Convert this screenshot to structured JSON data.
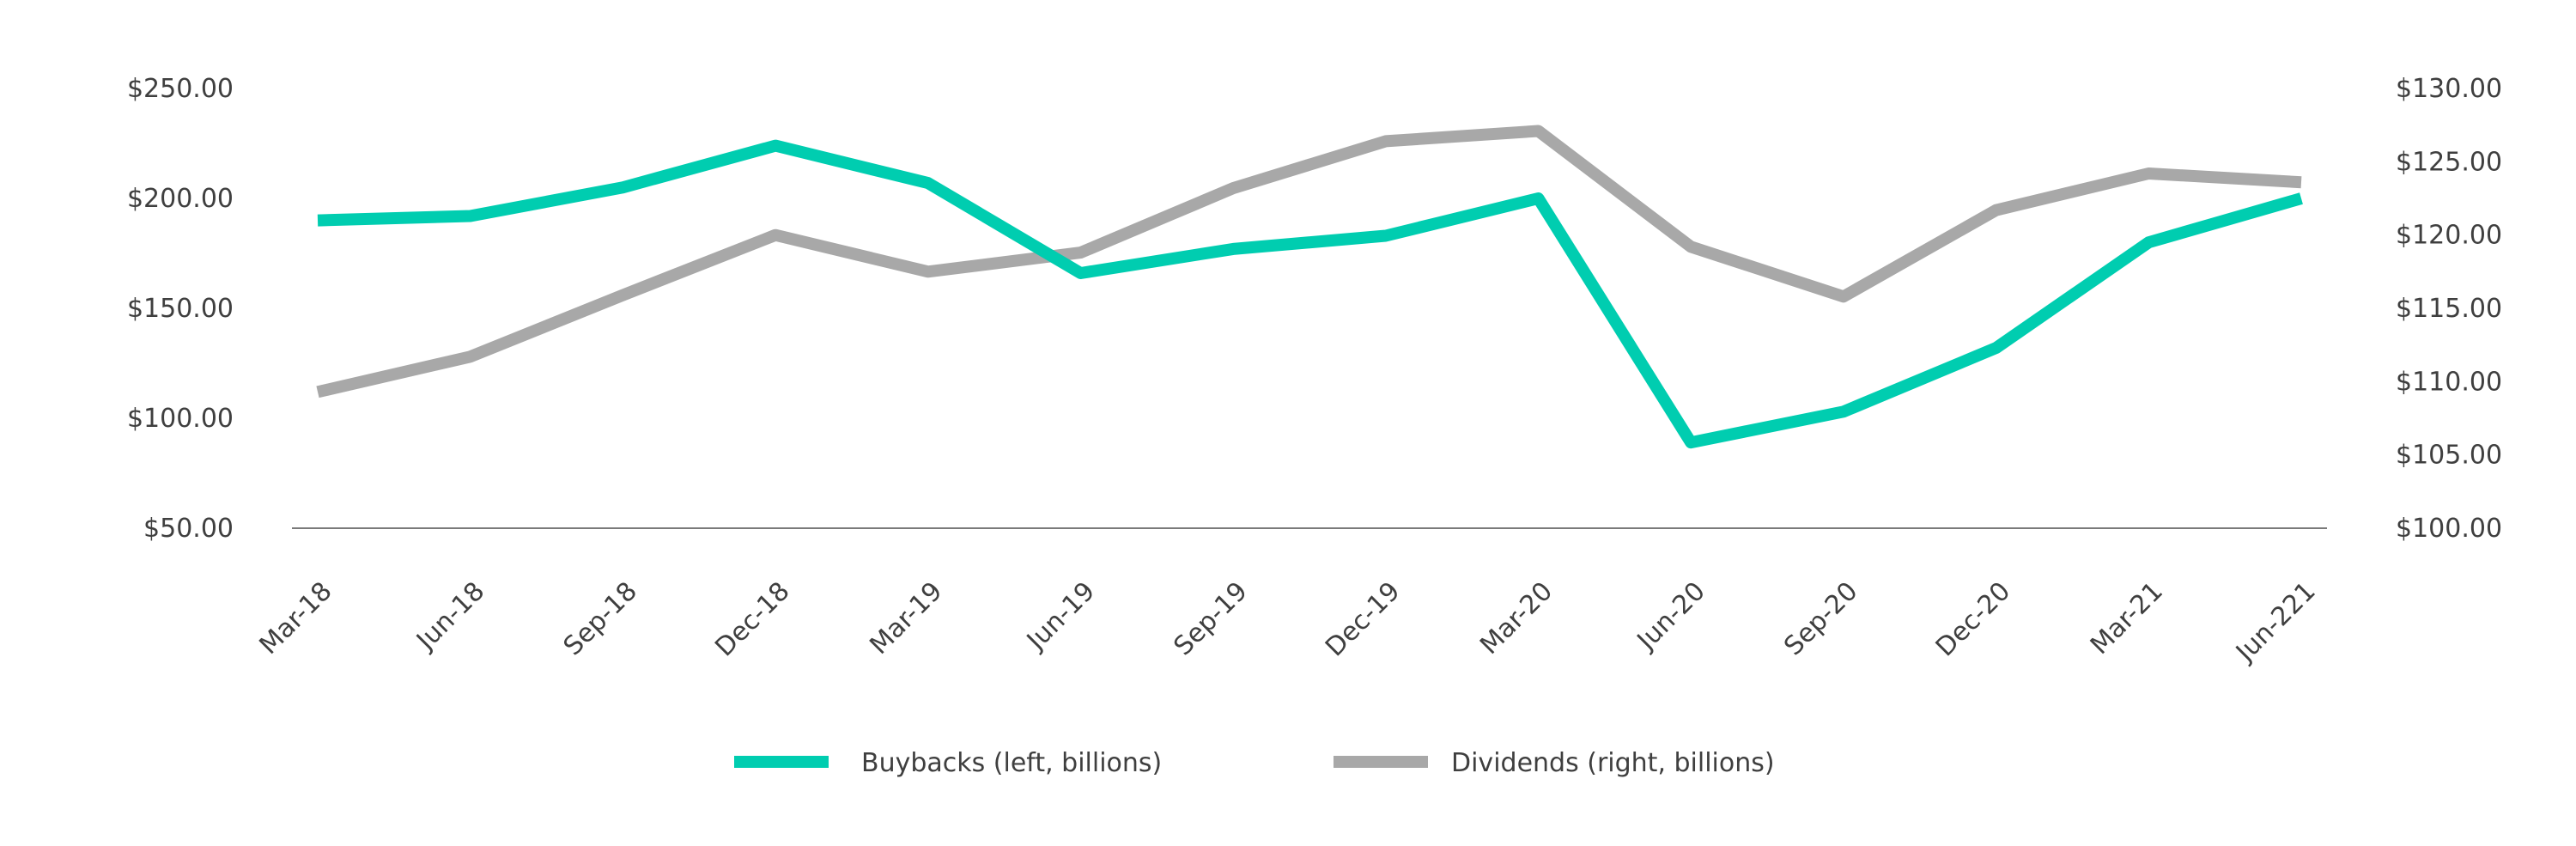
{
  "chart_data": {
    "type": "line",
    "title": "",
    "categories": [
      "Mar-18",
      "Jun-18",
      "Sep-18",
      "Dec-18",
      "Mar-19",
      "Jun-19",
      "Sep-19",
      "Dec-19",
      "Mar-20",
      "Jun-20",
      "Sep-20",
      "Dec-20",
      "Mar-21",
      "Jun-221"
    ],
    "axes": {
      "left": {
        "ylim": [
          50,
          250
        ],
        "ticks": [
          50,
          100,
          150,
          200,
          250
        ],
        "tick_labels": [
          "$50.00",
          "$100.00",
          "$150.00",
          "$200.00",
          "$250.00"
        ]
      },
      "right": {
        "ylim": [
          100,
          130
        ],
        "ticks": [
          100,
          105,
          110,
          115,
          120,
          125,
          130
        ],
        "tick_labels": [
          "$100.00",
          "$105.00",
          "$110.00",
          "$115.00",
          "$120.00",
          "$125.00",
          "$130.00"
        ]
      }
    },
    "series": [
      {
        "name": "Buybacks (left, billions)",
        "axis": "left",
        "color": "#00cdb0",
        "values": [
          190,
          192,
          205,
          224,
          207,
          166,
          177,
          183,
          200,
          89,
          103,
          132,
          180,
          200
        ]
      },
      {
        "name": "Dividends (right, billions)",
        "axis": "right",
        "color": "#a8a8a8",
        "values": [
          109.3,
          111.7,
          115.9,
          120.0,
          117.5,
          118.8,
          123.2,
          126.4,
          127.1,
          119.2,
          115.8,
          121.7,
          124.2,
          123.6
        ]
      }
    ],
    "grid": false,
    "legend_position": "bottom"
  }
}
